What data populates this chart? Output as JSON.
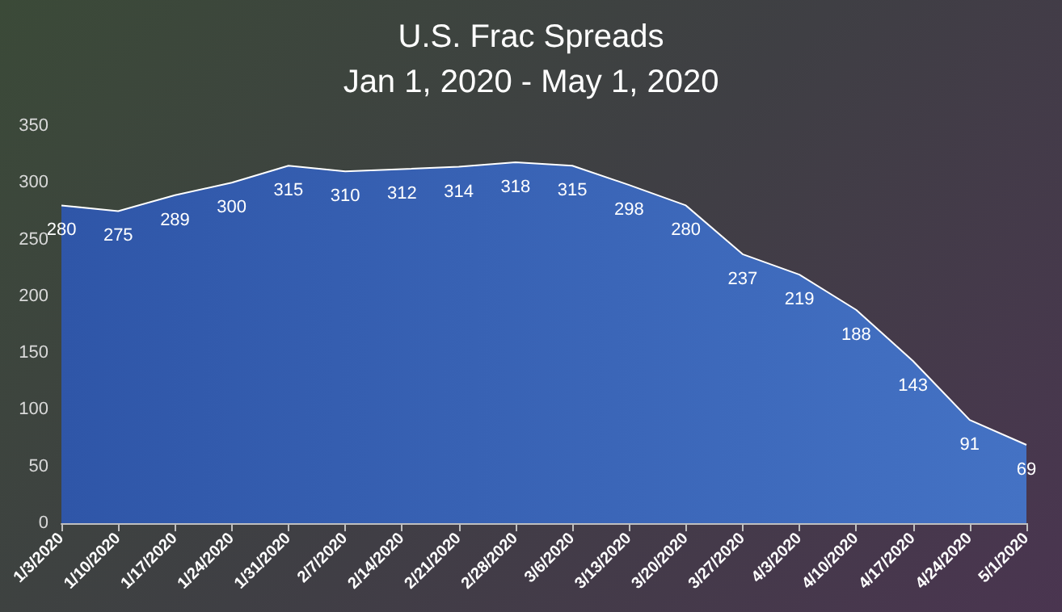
{
  "chart_data": {
    "type": "area",
    "title": "U.S. Frac Spreads",
    "subtitle": "Jan 1, 2020 - May 1, 2020",
    "categories": [
      "1/3/2020",
      "1/10/2020",
      "1/17/2020",
      "1/24/2020",
      "1/31/2020",
      "2/7/2020",
      "2/14/2020",
      "2/21/2020",
      "2/28/2020",
      "3/6/2020",
      "3/13/2020",
      "3/20/2020",
      "3/27/2020",
      "4/3/2020",
      "4/10/2020",
      "4/17/2020",
      "4/24/2020",
      "5/1/2020"
    ],
    "values": [
      280,
      275,
      289,
      300,
      315,
      310,
      312,
      314,
      318,
      315,
      298,
      280,
      237,
      219,
      188,
      143,
      91,
      69
    ],
    "color": "#4472c4",
    "ylim": [
      0,
      350
    ],
    "yticks": [
      0,
      50,
      100,
      150,
      200,
      250,
      300,
      350
    ],
    "data_labels": true,
    "grid": false,
    "marker": "none"
  }
}
